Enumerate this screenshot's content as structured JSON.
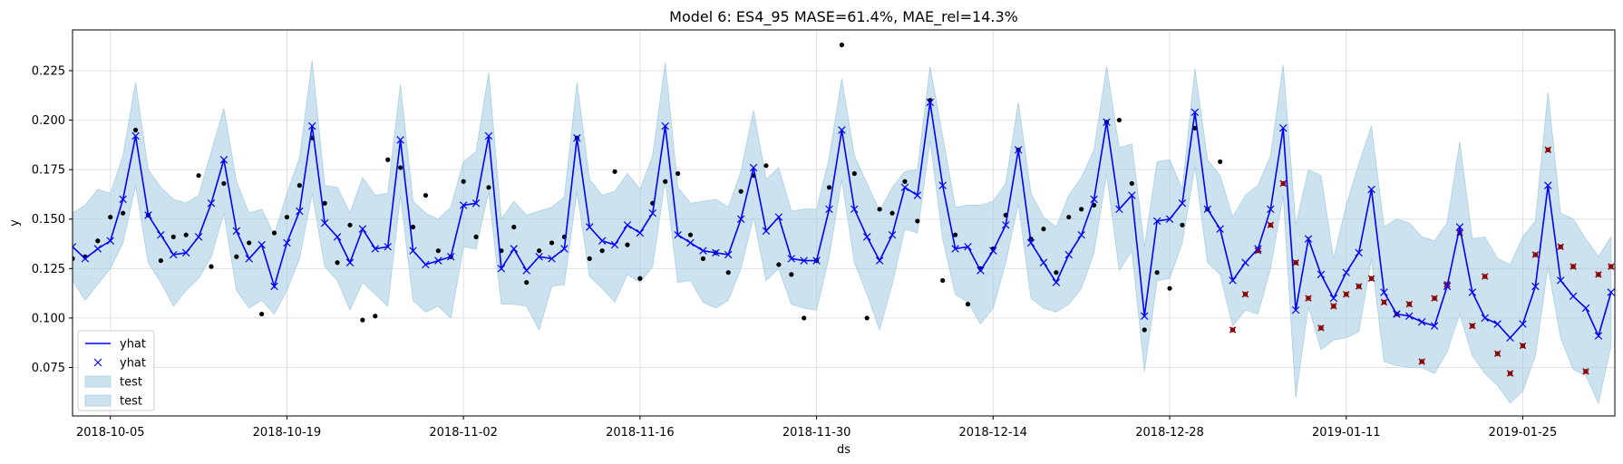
{
  "chart_data": {
    "type": "line",
    "title": "Model 6: ES4_95 MASE=61.4%, MAE_rel=14.3%",
    "xlabel": "ds",
    "ylabel": "y",
    "x_start_date": "2018-10-02",
    "xlim": [
      0,
      122.3
    ],
    "ylim": [
      0.0505,
      0.2456
    ],
    "x_ticks": [
      {
        "x": 3,
        "label": "2018-10-05"
      },
      {
        "x": 17,
        "label": "2018-10-19"
      },
      {
        "x": 31,
        "label": "2018-11-02"
      },
      {
        "x": 45,
        "label": "2018-11-16"
      },
      {
        "x": 59,
        "label": "2018-11-30"
      },
      {
        "x": 73,
        "label": "2018-12-14"
      },
      {
        "x": 87,
        "label": "2018-12-28"
      },
      {
        "x": 101,
        "label": "2019-01-11"
      },
      {
        "x": 115,
        "label": "2019-01-25"
      }
    ],
    "y_ticks": [
      0.075,
      0.1,
      0.125,
      0.15,
      0.175,
      0.2,
      0.225
    ],
    "grid": true,
    "legend_position": "lower-left",
    "legend": [
      "yhat",
      "yhat",
      "test",
      "test"
    ],
    "colors": {
      "forecast_line": "#0000ff",
      "band": "#9ac7e0",
      "band_edge": "#a9cfe5",
      "actual": "#000000",
      "test_marker": "#b00000",
      "grid": "#e1e1e1"
    },
    "test_start_index": 92,
    "yhat": [
      0.136,
      0.13,
      0.135,
      0.139,
      0.16,
      0.192,
      0.152,
      0.142,
      0.132,
      0.133,
      0.141,
      0.158,
      0.18,
      0.144,
      0.13,
      0.137,
      0.116,
      0.138,
      0.154,
      0.197,
      0.148,
      0.141,
      0.128,
      0.145,
      0.135,
      0.136,
      0.19,
      0.134,
      0.127,
      0.129,
      0.131,
      0.157,
      0.158,
      0.192,
      0.125,
      0.135,
      0.124,
      0.131,
      0.13,
      0.135,
      0.191,
      0.146,
      0.139,
      0.137,
      0.147,
      0.143,
      0.153,
      0.197,
      0.142,
      0.138,
      0.134,
      0.133,
      0.132,
      0.15,
      0.176,
      0.144,
      0.151,
      0.13,
      0.129,
      0.129,
      0.155,
      0.195,
      0.155,
      0.141,
      0.129,
      0.142,
      0.166,
      0.162,
      0.209,
      0.167,
      0.135,
      0.136,
      0.124,
      0.134,
      0.147,
      0.185,
      0.138,
      0.128,
      0.118,
      0.132,
      0.142,
      0.16,
      0.199,
      0.155,
      0.162,
      0.101,
      0.149,
      0.15,
      0.158,
      0.204,
      0.155,
      0.145,
      0.119,
      0.128,
      0.135,
      0.155,
      0.196,
      0.104,
      0.14,
      0.122,
      0.11,
      0.123,
      0.133,
      0.165,
      0.113,
      0.102,
      0.101,
      0.098,
      0.096,
      0.116,
      0.146,
      0.113,
      0.1,
      0.097,
      0.09,
      0.097,
      0.116,
      0.167,
      0.119,
      0.111,
      0.105,
      0.091,
      0.113
    ],
    "band_upper": [
      0.153,
      0.157,
      0.165,
      0.163,
      0.182,
      0.219,
      0.175,
      0.166,
      0.16,
      0.158,
      0.162,
      0.184,
      0.206,
      0.169,
      0.153,
      0.155,
      0.142,
      0.163,
      0.181,
      0.23,
      0.167,
      0.166,
      0.153,
      0.171,
      0.162,
      0.163,
      0.218,
      0.159,
      0.153,
      0.15,
      0.156,
      0.179,
      0.184,
      0.224,
      0.15,
      0.159,
      0.152,
      0.154,
      0.156,
      0.161,
      0.219,
      0.17,
      0.162,
      0.164,
      0.173,
      0.165,
      0.182,
      0.229,
      0.166,
      0.158,
      0.159,
      0.16,
      0.156,
      0.174,
      0.205,
      0.17,
      0.176,
      0.154,
      0.155,
      0.155,
      0.181,
      0.221,
      0.182,
      0.168,
      0.154,
      0.166,
      0.174,
      0.175,
      0.227,
      0.192,
      0.156,
      0.157,
      0.157,
      0.159,
      0.168,
      0.209,
      0.163,
      0.151,
      0.146,
      0.162,
      0.171,
      0.185,
      0.227,
      0.186,
      0.188,
      0.136,
      0.179,
      0.18,
      0.165,
      0.226,
      0.18,
      0.172,
      0.151,
      0.162,
      0.167,
      0.182,
      0.228,
      0.147,
      0.175,
      0.172,
      0.13,
      0.157,
      0.178,
      0.197,
      0.146,
      0.15,
      0.148,
      0.141,
      0.139,
      0.148,
      0.189,
      0.14,
      0.141,
      0.13,
      0.127,
      0.141,
      0.149,
      0.214,
      0.153,
      0.15,
      0.14,
      0.131,
      0.141
    ],
    "band_lower": [
      0.119,
      0.109,
      0.117,
      0.125,
      0.138,
      0.167,
      0.128,
      0.118,
      0.106,
      0.114,
      0.12,
      0.131,
      0.153,
      0.114,
      0.105,
      0.109,
      0.102,
      0.114,
      0.13,
      0.163,
      0.126,
      0.119,
      0.104,
      0.118,
      0.112,
      0.106,
      0.162,
      0.109,
      0.103,
      0.106,
      0.1,
      0.136,
      0.135,
      0.164,
      0.107,
      0.107,
      0.106,
      0.094,
      0.116,
      0.117,
      0.164,
      0.121,
      0.115,
      0.108,
      0.122,
      0.118,
      0.126,
      0.17,
      0.118,
      0.119,
      0.108,
      0.105,
      0.109,
      0.125,
      0.151,
      0.119,
      0.125,
      0.107,
      0.105,
      0.104,
      0.131,
      0.17,
      0.128,
      0.112,
      0.094,
      0.117,
      0.145,
      0.143,
      0.19,
      0.14,
      0.112,
      0.108,
      0.097,
      0.105,
      0.128,
      0.158,
      0.11,
      0.105,
      0.103,
      0.107,
      0.115,
      0.133,
      0.173,
      0.124,
      0.134,
      0.073,
      0.119,
      0.12,
      0.138,
      0.177,
      0.128,
      0.122,
      0.096,
      0.104,
      0.102,
      0.125,
      0.162,
      0.06,
      0.106,
      0.084,
      0.089,
      0.09,
      0.093,
      0.13,
      0.078,
      0.076,
      0.075,
      0.075,
      0.072,
      0.083,
      0.102,
      0.081,
      0.072,
      0.066,
      0.057,
      0.063,
      0.081,
      0.126,
      0.09,
      0.074,
      0.071,
      0.057,
      0.086
    ],
    "actual": [
      0.13,
      0.131,
      0.139,
      0.151,
      0.153,
      0.195,
      0.152,
      0.129,
      0.141,
      0.142,
      0.172,
      0.126,
      0.168,
      0.131,
      0.138,
      0.102,
      0.143,
      0.151,
      0.167,
      0.191,
      0.158,
      0.128,
      0.147,
      0.099,
      0.101,
      0.18,
      0.176,
      0.146,
      0.162,
      0.134,
      0.131,
      0.169,
      0.141,
      0.166,
      0.134,
      0.146,
      0.118,
      0.134,
      0.138,
      0.141,
      0.191,
      0.13,
      0.134,
      0.174,
      0.137,
      0.12,
      0.158,
      0.169,
      0.173,
      0.142,
      0.13,
      0.133,
      0.123,
      0.164,
      0.172,
      0.177,
      0.127,
      0.122,
      0.1,
      0.129,
      0.166,
      0.238,
      0.173,
      0.1,
      0.155,
      0.153,
      0.169,
      0.149,
      0.21,
      0.119,
      0.142,
      0.107,
      0.125,
      0.135,
      0.152,
      0.185,
      0.14,
      0.145,
      0.123,
      0.151,
      0.155,
      0.157,
      0.199,
      0.2,
      0.168,
      0.094,
      0.123,
      0.115,
      0.147,
      0.196,
      0.155,
      0.179,
      0.094,
      0.112,
      0.134,
      0.147,
      0.168,
      0.128,
      0.11,
      0.095,
      0.106,
      0.112,
      0.116,
      0.12,
      0.108,
      0.102,
      0.107,
      0.078,
      0.11,
      0.117,
      0.143,
      0.096,
      0.121,
      0.082,
      0.072,
      0.086,
      0.132,
      0.185,
      0.136,
      0.126,
      0.073,
      0.122,
      0.126
    ]
  }
}
